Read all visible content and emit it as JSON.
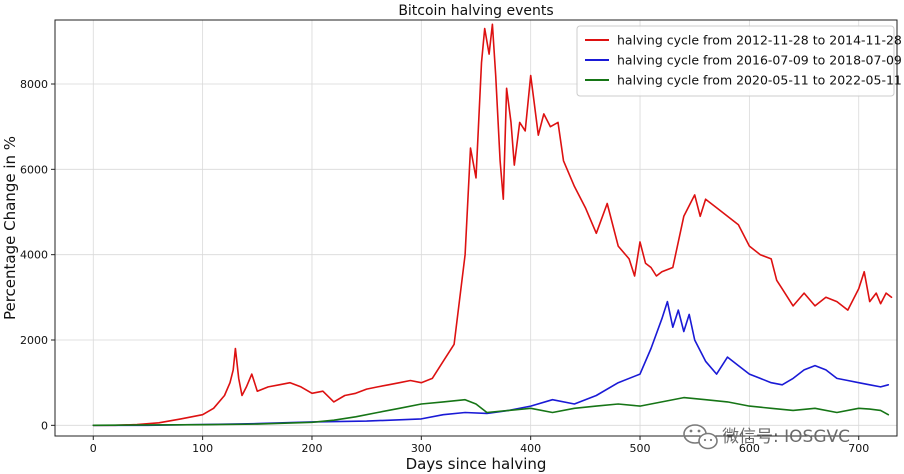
{
  "chart_data": {
    "type": "line",
    "title": "Bitcoin halving events",
    "xlabel": "Days since halving",
    "ylabel": "Percentage Change in %",
    "xlim": [
      -35,
      735
    ],
    "ylim": [
      -250,
      9500
    ],
    "xticks": [
      0,
      100,
      200,
      300,
      400,
      500,
      600,
      700
    ],
    "yticks": [
      0,
      2000,
      4000,
      6000,
      8000
    ],
    "grid": true,
    "legend_position": "top-right",
    "series": [
      {
        "name": "halving cycle from 2012-11-28 to 2014-11-28",
        "color": "#dd1111",
        "x": [
          0,
          20,
          40,
          60,
          80,
          100,
          110,
          120,
          125,
          128,
          130,
          133,
          136,
          140,
          145,
          150,
          160,
          170,
          180,
          190,
          200,
          210,
          220,
          230,
          240,
          250,
          260,
          270,
          280,
          290,
          300,
          310,
          320,
          330,
          340,
          345,
          350,
          355,
          358,
          362,
          365,
          368,
          372,
          375,
          378,
          382,
          385,
          390,
          395,
          400,
          403,
          407,
          412,
          418,
          425,
          430,
          440,
          450,
          460,
          470,
          480,
          490,
          495,
          500,
          505,
          510,
          515,
          520,
          530,
          540,
          550,
          555,
          560,
          570,
          580,
          590,
          600,
          610,
          620,
          625,
          630,
          640,
          650,
          660,
          670,
          680,
          690,
          700,
          705,
          710,
          716,
          720,
          725,
          730
        ],
        "y": [
          0,
          0,
          20,
          60,
          150,
          250,
          400,
          700,
          1000,
          1300,
          1800,
          1100,
          700,
          900,
          1200,
          800,
          900,
          950,
          1000,
          900,
          750,
          800,
          550,
          700,
          750,
          850,
          900,
          950,
          1000,
          1050,
          1000,
          1100,
          1500,
          1900,
          4000,
          6500,
          5800,
          8500,
          9300,
          8700,
          9400,
          8200,
          6200,
          5300,
          7900,
          7100,
          6100,
          7100,
          6900,
          8200,
          7600,
          6800,
          7300,
          7000,
          7100,
          6200,
          5600,
          5100,
          4500,
          5200,
          4200,
          3900,
          3500,
          4300,
          3800,
          3700,
          3500,
          3600,
          3700,
          4900,
          5400,
          4900,
          5300,
          5100,
          4900,
          4700,
          4200,
          4000,
          3900,
          3400,
          3200,
          2800,
          3100,
          2800,
          3000,
          2900,
          2700,
          3200,
          3600,
          2900,
          3100,
          2850,
          3100,
          3000
        ]
      },
      {
        "name": "halving cycle from 2016-07-09 to 2018-07-09",
        "color": "#1a1ad6",
        "x": [
          0,
          50,
          100,
          150,
          200,
          250,
          300,
          320,
          340,
          360,
          380,
          400,
          420,
          440,
          460,
          480,
          500,
          510,
          520,
          525,
          530,
          535,
          540,
          545,
          550,
          560,
          570,
          580,
          590,
          600,
          610,
          620,
          630,
          640,
          650,
          660,
          670,
          680,
          690,
          700,
          710,
          720,
          727
        ],
        "y": [
          0,
          0,
          20,
          40,
          80,
          100,
          150,
          250,
          300,
          280,
          350,
          450,
          600,
          500,
          700,
          1000,
          1200,
          1800,
          2500,
          2900,
          2300,
          2700,
          2200,
          2600,
          2000,
          1500,
          1200,
          1600,
          1400,
          1200,
          1100,
          1000,
          950,
          1100,
          1300,
          1400,
          1300,
          1100,
          1050,
          1000,
          950,
          900,
          950
        ]
      },
      {
        "name": "halving cycle from 2020-05-11 to 2022-05-11",
        "color": "#167516",
        "x": [
          0,
          50,
          100,
          150,
          200,
          220,
          240,
          260,
          280,
          300,
          320,
          340,
          350,
          360,
          380,
          400,
          420,
          440,
          460,
          480,
          500,
          520,
          540,
          560,
          580,
          600,
          620,
          640,
          660,
          680,
          700,
          710,
          720,
          727
        ],
        "y": [
          0,
          10,
          15,
          30,
          70,
          120,
          200,
          300,
          400,
          500,
          550,
          600,
          500,
          300,
          350,
          400,
          300,
          400,
          450,
          500,
          450,
          550,
          650,
          600,
          550,
          450,
          400,
          350,
          400,
          300,
          400,
          380,
          350,
          250
        ]
      }
    ]
  },
  "watermark": {
    "label": "微信号: IOSGVC",
    "icon": "wechat-logo-icon"
  }
}
